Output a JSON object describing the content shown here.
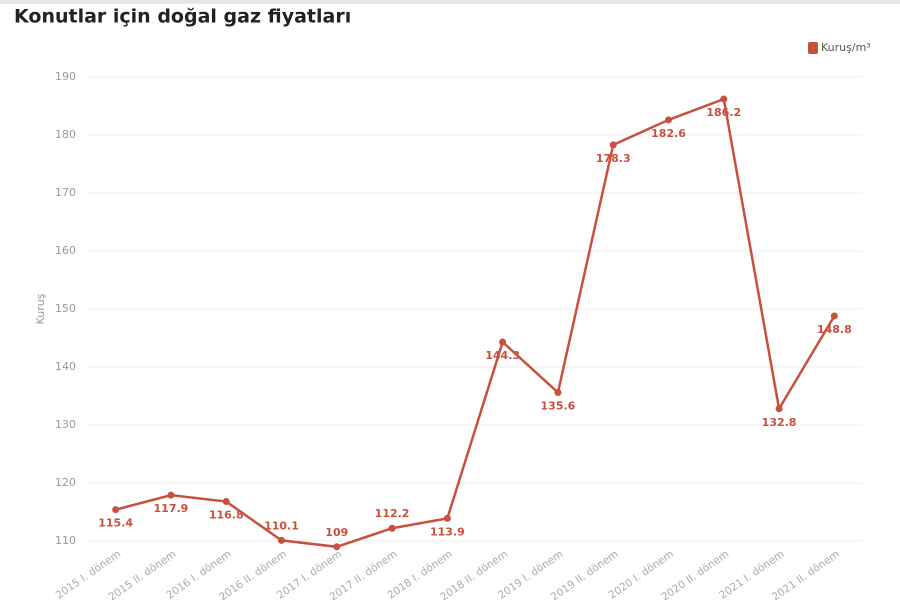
{
  "chart_data": {
    "type": "line",
    "title": "Konutlar için doğal gaz fiyatları",
    "y_label": "Kuruş",
    "categories": [
      "2015 I. dönem",
      "2015 II. dönem",
      "2016 I. dönem",
      "2016 II. dönem",
      "2017 I. dönem",
      "2017 II. dönem",
      "2018 I. dönem",
      "2018 II. dönem",
      "2019 I. dönem",
      "2019 II. dönem",
      "2020 I. dönem",
      "2020 II. dönem",
      "2021 I. dönem",
      "2021 II. dönem"
    ],
    "series": [
      {
        "name": "Kuruş/m³",
        "color": "#c9503f",
        "values": [
          115.4,
          117.9,
          116.8,
          110.1,
          109,
          112.2,
          113.9,
          144.3,
          135.6,
          178.3,
          182.6,
          186.2,
          132.8,
          148.8
        ]
      }
    ],
    "ylim": [
      110,
      190
    ],
    "yticks": [
      110,
      120,
      130,
      140,
      150,
      160,
      170,
      180,
      190
    ],
    "grid": true,
    "legend": "top-right"
  }
}
